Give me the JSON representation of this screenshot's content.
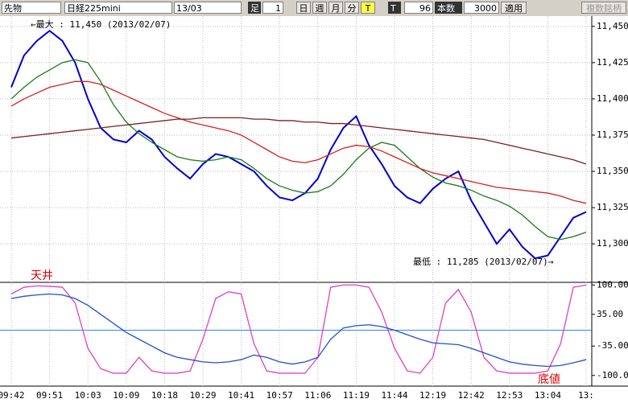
{
  "toolbar": {
    "market": "先物",
    "symbol": "日経225mini",
    "contract": "13/03",
    "bar_label": "足",
    "bar_size": "1",
    "day": "日",
    "week": "週",
    "month": "月",
    "minute": "分",
    "tick": "T",
    "t_label": "T",
    "t_value": "96",
    "count_label": "本数",
    "count_value": "3000",
    "apply": "適用",
    "multi": "複数銘柄"
  },
  "chart_data": [
    {
      "type": "line",
      "categories": [
        "09:42",
        null,
        null,
        "09:51",
        null,
        null,
        "10:03",
        null,
        null,
        "10:09",
        null,
        null,
        "10:18",
        null,
        null,
        "10:29",
        null,
        null,
        "10:41",
        null,
        null,
        "10:57",
        null,
        null,
        "11:06",
        null,
        null,
        "11:19",
        null,
        null,
        "11:44",
        null,
        null,
        "12:19",
        null,
        null,
        "12:42",
        null,
        null,
        "12:53",
        null,
        null,
        "13:04",
        null,
        null,
        "13:"
      ],
      "series": [
        {
          "color": "#0000cc",
          "values": [
            11408,
            11430,
            11440,
            11447,
            11440,
            11425,
            11400,
            11380,
            11372,
            11370,
            11378,
            11372,
            11360,
            11352,
            11345,
            11355,
            11362,
            11360,
            11355,
            11350,
            11340,
            11332,
            11330,
            11335,
            11345,
            11365,
            11380,
            11388,
            11368,
            11355,
            11340,
            11332,
            11328,
            11338,
            11345,
            11350,
            11330,
            11315,
            11300,
            11310,
            11298,
            11290,
            11292,
            11305,
            11318,
            11322
          ]
        },
        {
          "color": "#1a7a1a",
          "values": [
            11400,
            11408,
            11415,
            11420,
            11425,
            11427,
            11425,
            11412,
            11396,
            11384,
            11376,
            11370,
            11365,
            11360,
            11358,
            11357,
            11358,
            11360,
            11358,
            11352,
            11345,
            11340,
            11337,
            11335,
            11336,
            11340,
            11348,
            11358,
            11366,
            11370,
            11368,
            11360,
            11352,
            11346,
            11342,
            11340,
            11337,
            11333,
            11330,
            11326,
            11320,
            11312,
            11305,
            11303,
            11305,
            11308
          ]
        },
        {
          "color": "#d42020",
          "values": [
            11395,
            11400,
            11404,
            11408,
            11410,
            11412,
            11412,
            11410,
            11406,
            11402,
            11398,
            11394,
            11390,
            11387,
            11384,
            11382,
            11380,
            11378,
            11375,
            11370,
            11365,
            11360,
            11357,
            11356,
            11358,
            11362,
            11366,
            11368,
            11367,
            11364,
            11360,
            11356,
            11352,
            11349,
            11347,
            11345,
            11343,
            11341,
            11339,
            11338,
            11337,
            11336,
            11335,
            11333,
            11330,
            11328
          ]
        },
        {
          "color": "#7a2020",
          "values": [
            11373,
            11374,
            11375,
            11376,
            11377,
            11378,
            11379,
            11380,
            11381,
            11382,
            11383,
            11384,
            11385,
            11386,
            11386,
            11387,
            11387,
            11387,
            11387,
            11386,
            11386,
            11385,
            11385,
            11384,
            11384,
            11383,
            11383,
            11382,
            11381,
            11380,
            11379,
            11378,
            11377,
            11376,
            11375,
            11374,
            11373,
            11372,
            11370,
            11368,
            11366,
            11364,
            11362,
            11360,
            11358,
            11355
          ]
        }
      ],
      "ylim": [
        11274,
        11456
      ],
      "yticks": [
        {
          "value": 11300,
          "label": "11,300"
        },
        {
          "value": 11325,
          "label": "11,325"
        },
        {
          "value": 11350,
          "label": "11,350"
        },
        {
          "value": 11375,
          "label": "11,375"
        },
        {
          "value": 11400,
          "label": "11,400"
        },
        {
          "value": 11425,
          "label": "11,425"
        },
        {
          "value": 11450,
          "label": "11,450"
        }
      ],
      "grid": true,
      "annotations": [
        "←最大 : 11,450 (2013/02/07)",
        "最低 : 11,285 (2013/02/07)→"
      ]
    },
    {
      "type": "line",
      "series": [
        {
          "color": "#e040c0",
          "values": [
            80,
            95,
            98,
            97,
            95,
            60,
            -40,
            -85,
            -95,
            -95,
            -60,
            -90,
            -95,
            -95,
            -90,
            -20,
            70,
            85,
            80,
            -30,
            -90,
            -95,
            -95,
            -95,
            -60,
            95,
            100,
            100,
            95,
            40,
            -40,
            -90,
            -95,
            -60,
            60,
            90,
            40,
            -60,
            -90,
            -95,
            -95,
            -95,
            -90,
            -30,
            95,
            100
          ]
        },
        {
          "color": "#2050d0",
          "values": [
            70,
            75,
            78,
            80,
            78,
            70,
            55,
            35,
            15,
            -5,
            -20,
            -35,
            -50,
            -60,
            -65,
            -70,
            -72,
            -70,
            -65,
            -55,
            -60,
            -70,
            -75,
            -70,
            -60,
            -20,
            5,
            10,
            12,
            8,
            0,
            -10,
            -20,
            -28,
            -30,
            -32,
            -40,
            -50,
            -60,
            -70,
            -75,
            -78,
            -80,
            -78,
            -72,
            -65
          ]
        }
      ],
      "ylim": [
        -120,
        104
      ],
      "yticks": [
        {
          "value": -100,
          "label": "-100.0"
        },
        {
          "value": -35,
          "label": "-35.00"
        },
        {
          "value": 35,
          "label": "35.00"
        },
        {
          "value": 100,
          "label": "100.00"
        }
      ],
      "reference_line": 0,
      "annotations": [
        "天井",
        "底値"
      ]
    }
  ]
}
